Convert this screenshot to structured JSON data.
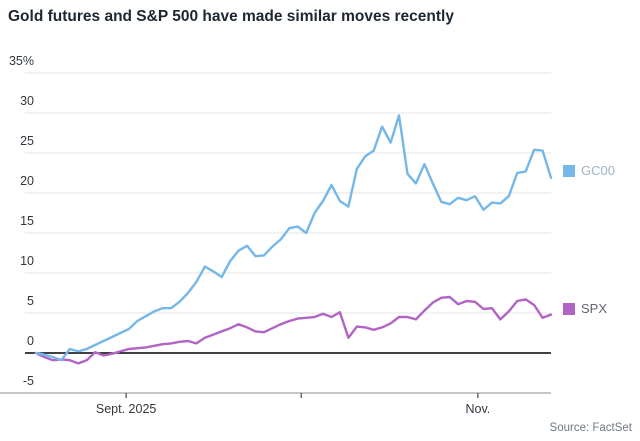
{
  "title": "Gold futures and S&P 500 have made similar moves recently",
  "source": "Source: FactSet",
  "legend": [
    {
      "label": "GC00",
      "color": "#74b7e8",
      "text_color": "#9fb4c5"
    },
    {
      "label": "SPX",
      "color": "#b164c5",
      "text_color": "#63676f"
    }
  ],
  "chart_data": {
    "type": "line",
    "title": "Gold futures and S&P 500 have made similar moves recently",
    "unit": "percent change",
    "grid": "horizontal",
    "legend_position": "right-of-line-ends",
    "ylim": [
      -5,
      35
    ],
    "y_axis": {
      "ticks": [
        35,
        30,
        25,
        20,
        15,
        10,
        5,
        0,
        -5
      ],
      "tick_labels": [
        "35%",
        "30",
        "25",
        "20",
        "15",
        "10",
        "5",
        "0",
        "-5"
      ]
    },
    "x_axis": {
      "range_note": "mid-August 2025 through mid-November 2025",
      "ticks": [
        {
          "label": "Sept. 2025",
          "pos": 0.175
        },
        {
          "label": "",
          "pos": 0.515
        },
        {
          "label": "Nov.",
          "pos": 0.858
        }
      ]
    },
    "colors": {
      "gridline": "#e4e5e7",
      "zero_line": "#000000",
      "axis_line": "#8c8c8c",
      "tick": "#444444"
    },
    "series": [
      {
        "name": "SPX",
        "color": "#b164c5",
        "values": [
          0,
          -0.5,
          -0.9,
          -0.8,
          -0.9,
          -1.3,
          -0.9,
          0.1,
          -0.3,
          -0.1,
          0.2,
          0.5,
          0.6,
          0.7,
          0.9,
          1.1,
          1.2,
          1.4,
          1.5,
          1.2,
          1.9,
          2.3,
          2.7,
          3.1,
          3.6,
          3.2,
          2.7,
          2.6,
          3.1,
          3.6,
          4.0,
          4.3,
          4.4,
          4.5,
          4.9,
          4.5,
          5.1,
          1.9,
          3.3,
          3.2,
          2.9,
          3.2,
          3.7,
          4.5,
          4.5,
          4.2,
          5.3,
          6.3,
          6.9,
          7.0,
          6.1,
          6.5,
          6.4,
          5.5,
          5.6,
          4.2,
          5.2,
          6.5,
          6.7,
          6.0,
          4.4,
          4.8
        ]
      },
      {
        "name": "GC00",
        "color": "#74b7e8",
        "values": [
          0,
          -0.2,
          -0.5,
          -0.9,
          0.5,
          0.2,
          0.5,
          1.0,
          1.5,
          2.0,
          2.5,
          3.0,
          4.0,
          4.6,
          5.2,
          5.6,
          5.6,
          6.4,
          7.5,
          8.9,
          10.8,
          10.2,
          9.5,
          11.5,
          12.8,
          13.4,
          12.1,
          12.2,
          13.3,
          14.2,
          15.6,
          15.8,
          15.0,
          17.5,
          19.0,
          21.0,
          19.0,
          18.3,
          23.0,
          24.6,
          25.3,
          28.3,
          26.3,
          29.7,
          22.4,
          21.2,
          23.6,
          21.2,
          18.9,
          18.6,
          19.4,
          19.1,
          19.6,
          17.9,
          18.8,
          18.7,
          19.6,
          22.5,
          22.7,
          25.4,
          25.3,
          21.9
        ]
      }
    ]
  }
}
